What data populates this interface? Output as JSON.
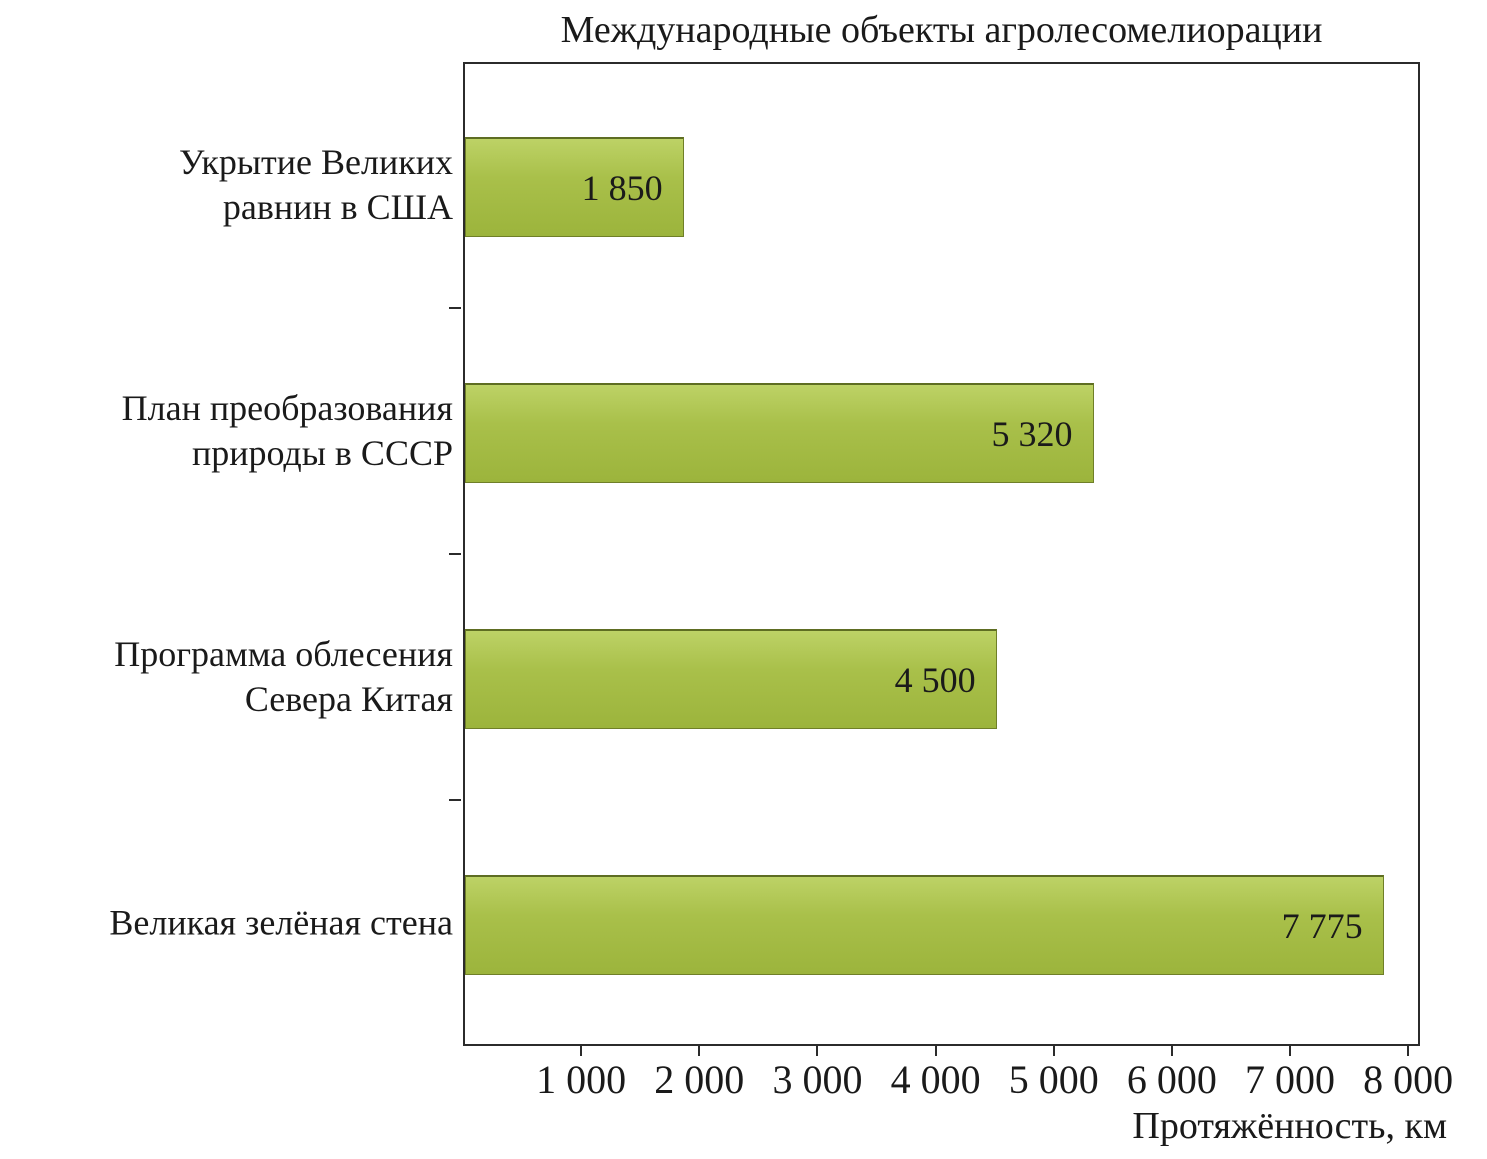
{
  "title": "Международные объекты агролесомелиорации",
  "chart_data": {
    "type": "bar",
    "orientation": "horizontal",
    "title": "Международные объекты агролесомелиорации",
    "xlabel": "Протяжённость, км",
    "ylabel": "",
    "categories": [
      "Укрытие Великих равнин в США",
      "План преобразования природы в СССР",
      "Программа облесения Севера Китая",
      "Великая зелёная стена"
    ],
    "category_display_lines": [
      "Укрытие Великих\nравнин в США",
      "План преобразования\nприроды в СССР",
      "Программа облесения\nСевера Китая",
      "Великая зелёная стена"
    ],
    "values": [
      1850,
      5320,
      4500,
      7775
    ],
    "value_labels": [
      "1 850",
      "5 320",
      "4 500",
      "7 775"
    ],
    "xlim": [
      0,
      8100
    ],
    "xticks": [
      1000,
      2000,
      3000,
      4000,
      5000,
      6000,
      7000,
      8000
    ],
    "xtick_labels": [
      "1 000",
      "2 000",
      "3 000",
      "4 000",
      "5 000",
      "6 000",
      "7 000",
      "8 000"
    ],
    "grid": false,
    "legend": null,
    "bar_color": "#a3ba41",
    "bar_border_color": "#6f7f28"
  },
  "colors": {
    "bar_fill": "#a3ba41",
    "bar_border": "#6f7f28",
    "axis": "#2b2b2b",
    "text": "#1a1a1a",
    "background": "#ffffff"
  }
}
